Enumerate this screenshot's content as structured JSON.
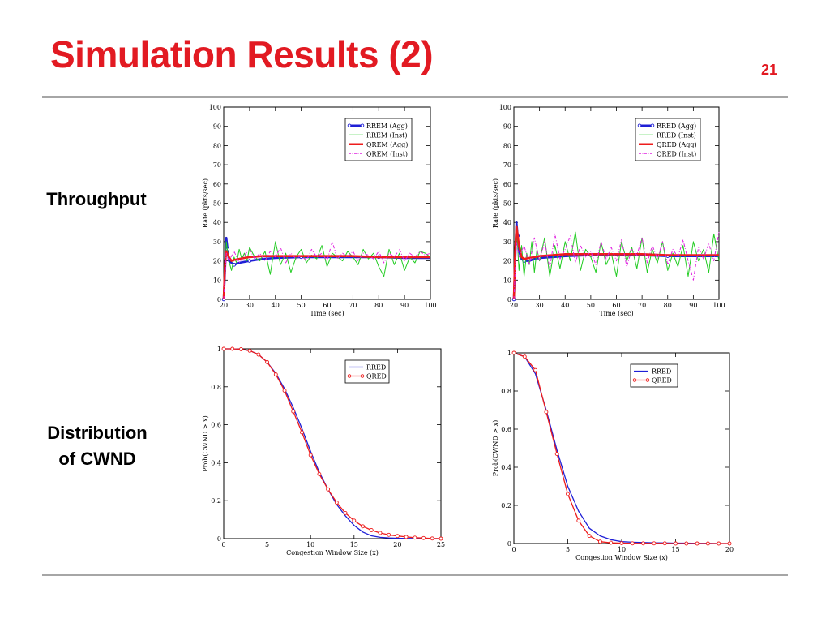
{
  "slide": {
    "title": "Simulation Results (2)",
    "number": "21",
    "row_labels": {
      "throughput": "Throughput",
      "cwnd_line1": "Distribution",
      "cwnd_line2": "of CWND"
    }
  },
  "chart_data": [
    {
      "type": "line",
      "xlabel": "Time (sec)",
      "ylabel": "Rate (pkts/sec)",
      "xlim": [
        20,
        100
      ],
      "ylim": [
        0,
        100
      ],
      "xticks": [
        20,
        30,
        40,
        50,
        60,
        70,
        80,
        90,
        100
      ],
      "yticks": [
        0,
        10,
        20,
        30,
        40,
        50,
        60,
        70,
        80,
        90,
        100
      ],
      "legend": "top-right",
      "series": [
        {
          "name": "RREM (Agg)",
          "color": "#1f1fd6",
          "style": "solid-thick-marker",
          "x": [
            20,
            20.5,
            21,
            21.5,
            22,
            23,
            24,
            26,
            28,
            30,
            35,
            40,
            50,
            60,
            70,
            80,
            90,
            100
          ],
          "y": [
            0,
            15,
            32,
            26,
            20,
            19,
            18,
            19,
            19.5,
            20,
            21,
            21.5,
            22,
            22,
            22,
            22,
            21.5,
            21.5
          ]
        },
        {
          "name": "RREM (Inst)",
          "color": "#22cc22",
          "style": "solid-thin",
          "x": [
            20,
            21,
            22,
            23,
            24,
            25,
            26,
            27,
            28,
            29,
            30,
            32,
            34,
            36,
            38,
            40,
            42,
            44,
            46,
            48,
            50,
            52,
            54,
            56,
            58,
            60,
            62,
            64,
            66,
            68,
            70,
            72,
            74,
            76,
            78,
            80,
            82,
            84,
            86,
            88,
            90,
            92,
            94,
            96,
            98,
            100
          ],
          "y": [
            0,
            30,
            20,
            15,
            22,
            19,
            26,
            21,
            24,
            20,
            27,
            22,
            20,
            25,
            13,
            30,
            18,
            24,
            14,
            22,
            26,
            19,
            23,
            21,
            28,
            17,
            24,
            22,
            20,
            25,
            22,
            18,
            26,
            21,
            24,
            17,
            12,
            26,
            18,
            24,
            15,
            22,
            19,
            25,
            24,
            22
          ]
        },
        {
          "name": "QREM (Agg)",
          "color": "#ee1c1c",
          "style": "solid-thick",
          "x": [
            20,
            20.5,
            21,
            22,
            23,
            24,
            26,
            28,
            30,
            35,
            40,
            50,
            60,
            70,
            80,
            90,
            100
          ],
          "y": [
            0,
            18,
            25,
            22,
            20,
            20.5,
            21,
            21.5,
            22,
            22.5,
            22.5,
            22.5,
            22.5,
            22.5,
            22,
            22,
            22
          ]
        },
        {
          "name": "QREM (Inst)",
          "color": "#e020e0",
          "style": "dash-dot",
          "x": [
            20,
            21,
            22,
            24,
            26,
            28,
            30,
            32,
            34,
            36,
            38,
            40,
            42,
            44,
            46,
            48,
            50,
            52,
            54,
            56,
            58,
            60,
            62,
            64,
            66,
            68,
            70,
            72,
            74,
            76,
            78,
            80,
            82,
            84,
            86,
            88,
            90,
            92,
            94,
            96,
            98,
            100
          ],
          "y": [
            0,
            24,
            20,
            25,
            19,
            23,
            26,
            21,
            24,
            20,
            25,
            22,
            27,
            19,
            24,
            21,
            23,
            20,
            26,
            22,
            24,
            20,
            30,
            21,
            24,
            22,
            25,
            20,
            24,
            23,
            21,
            25,
            19,
            24,
            22,
            26,
            20,
            24,
            22,
            25,
            23,
            24
          ]
        }
      ]
    },
    {
      "type": "line",
      "xlabel": "Time (sec)",
      "ylabel": "Rate (pkts/sec)",
      "xlim": [
        20,
        100
      ],
      "ylim": [
        0,
        100
      ],
      "xticks": [
        20,
        30,
        40,
        50,
        60,
        70,
        80,
        90,
        100
      ],
      "yticks": [
        0,
        10,
        20,
        30,
        40,
        50,
        60,
        70,
        80,
        90,
        100
      ],
      "legend": "top-right",
      "series": [
        {
          "name": "RRED (Agg)",
          "color": "#1f1fd6",
          "style": "solid-thick-marker",
          "x": [
            20,
            20.5,
            21,
            21.5,
            22,
            23,
            24,
            26,
            28,
            30,
            35,
            40,
            50,
            60,
            70,
            80,
            90,
            100
          ],
          "y": [
            0,
            20,
            40,
            33,
            25,
            21,
            20,
            20,
            21,
            21.5,
            22,
            22.5,
            23,
            23,
            23,
            22.5,
            22.5,
            22.5
          ]
        },
        {
          "name": "RRED (Inst)",
          "color": "#22cc22",
          "style": "solid-thin",
          "x": [
            20,
            21,
            22,
            23,
            24,
            25,
            26,
            27,
            28,
            29,
            30,
            32,
            34,
            36,
            38,
            40,
            42,
            44,
            46,
            48,
            50,
            52,
            54,
            56,
            58,
            60,
            62,
            64,
            66,
            68,
            70,
            72,
            74,
            76,
            78,
            80,
            82,
            84,
            86,
            88,
            90,
            92,
            94,
            96,
            98,
            100
          ],
          "y": [
            0,
            38,
            15,
            28,
            12,
            24,
            18,
            30,
            14,
            26,
            20,
            32,
            12,
            28,
            16,
            30,
            20,
            35,
            15,
            26,
            22,
            14,
            30,
            18,
            24,
            12,
            30,
            20,
            27,
            16,
            32,
            14,
            26,
            19,
            30,
            15,
            24,
            17,
            28,
            12,
            30,
            20,
            26,
            14,
            34,
            20
          ]
        },
        {
          "name": "QRED (Agg)",
          "color": "#ee1c1c",
          "style": "solid-thick",
          "x": [
            20,
            20.5,
            21,
            22,
            23,
            24,
            26,
            28,
            30,
            35,
            40,
            50,
            60,
            70,
            80,
            90,
            100
          ],
          "y": [
            0,
            25,
            38,
            28,
            22,
            21,
            21.5,
            22,
            22.5,
            23,
            23.5,
            23.5,
            23.5,
            23.5,
            23,
            23,
            23
          ]
        },
        {
          "name": "QRED (Inst)",
          "color": "#e020e0",
          "style": "dash-dot",
          "x": [
            20,
            21,
            22,
            24,
            26,
            28,
            30,
            32,
            34,
            36,
            38,
            40,
            42,
            44,
            46,
            48,
            50,
            52,
            54,
            56,
            58,
            60,
            62,
            64,
            66,
            68,
            70,
            72,
            74,
            76,
            78,
            80,
            82,
            84,
            86,
            88,
            90,
            92,
            94,
            96,
            98,
            100
          ],
          "y": [
            0,
            30,
            22,
            28,
            18,
            32,
            20,
            30,
            16,
            34,
            21,
            26,
            33,
            19,
            28,
            22,
            25,
            18,
            30,
            21,
            27,
            20,
            31,
            17,
            26,
            23,
            32,
            19,
            28,
            21,
            30,
            18,
            26,
            22,
            31,
            20,
            10,
            27,
            21,
            29,
            20,
            35
          ]
        }
      ]
    },
    {
      "type": "line",
      "xlabel": "Congestion Window Size (x)",
      "ylabel": "Prob(CWND > x)",
      "xlim": [
        0,
        25
      ],
      "ylim": [
        0,
        1
      ],
      "xticks": [
        0,
        5,
        10,
        15,
        20,
        25
      ],
      "yticks": [
        0,
        0.2,
        0.4,
        0.6,
        0.8,
        1
      ],
      "ytick_labels": [
        "0",
        "0.2",
        "0.4",
        "0.6",
        "0.8",
        "1"
      ],
      "legend": "top-right",
      "series": [
        {
          "name": "RRED",
          "color": "#1f1fd6",
          "style": "solid",
          "x": [
            0,
            1,
            2,
            3,
            4,
            5,
            6,
            7,
            8,
            9,
            10,
            11,
            12,
            13,
            14,
            15,
            16,
            17,
            18,
            19,
            20,
            21,
            22,
            23,
            24,
            25
          ],
          "y": [
            1,
            1,
            0.998,
            0.99,
            0.97,
            0.93,
            0.87,
            0.79,
            0.69,
            0.58,
            0.46,
            0.35,
            0.26,
            0.18,
            0.12,
            0.07,
            0.035,
            0.015,
            0.007,
            0.004,
            0.002,
            0.001,
            0.001,
            0,
            0,
            0
          ]
        },
        {
          "name": "QRED",
          "color": "#ee1c1c",
          "style": "solid-circle-marker",
          "x": [
            0,
            1,
            2,
            3,
            4,
            5,
            6,
            7,
            8,
            9,
            10,
            11,
            12,
            13,
            14,
            15,
            16,
            17,
            18,
            19,
            20,
            21,
            22,
            23,
            24,
            25
          ],
          "y": [
            1,
            1,
            0.998,
            0.99,
            0.97,
            0.93,
            0.865,
            0.78,
            0.67,
            0.56,
            0.44,
            0.34,
            0.26,
            0.19,
            0.135,
            0.095,
            0.065,
            0.045,
            0.03,
            0.02,
            0.014,
            0.009,
            0.005,
            0.003,
            0.001,
            0
          ]
        }
      ]
    },
    {
      "type": "line",
      "xlabel": "Congestion Window Size (x)",
      "ylabel": "Prob(CWND > x)",
      "xlim": [
        0,
        20
      ],
      "ylim": [
        0,
        1
      ],
      "xticks": [
        0,
        5,
        10,
        15,
        20
      ],
      "yticks": [
        0,
        0.2,
        0.4,
        0.6,
        0.8,
        1
      ],
      "ytick_labels": [
        "0",
        "0.2",
        "0.4",
        "0.6",
        "0.8",
        "1"
      ],
      "legend": "top-right",
      "series": [
        {
          "name": "RRED",
          "color": "#1f1fd6",
          "style": "solid",
          "x": [
            0,
            1,
            2,
            3,
            4,
            5,
            6,
            7,
            8,
            9,
            10,
            11,
            12,
            13,
            14,
            15,
            16,
            17,
            18,
            19,
            20
          ],
          "y": [
            1,
            0.98,
            0.89,
            0.7,
            0.49,
            0.3,
            0.17,
            0.08,
            0.04,
            0.02,
            0.01,
            0.007,
            0.005,
            0.004,
            0.003,
            0.002,
            0.002,
            0.001,
            0.001,
            0,
            0
          ]
        },
        {
          "name": "QRED",
          "color": "#ee1c1c",
          "style": "solid-circle-marker",
          "x": [
            0,
            1,
            2,
            3,
            4,
            5,
            6,
            7,
            8,
            9,
            10,
            11,
            12,
            13,
            14,
            15,
            16,
            17,
            18,
            19,
            20
          ],
          "y": [
            1,
            0.98,
            0.91,
            0.69,
            0.47,
            0.26,
            0.12,
            0.04,
            0.01,
            0.004,
            0.002,
            0.001,
            0.001,
            0.001,
            0.001,
            0,
            0,
            0,
            0,
            0,
            0
          ]
        }
      ]
    }
  ]
}
